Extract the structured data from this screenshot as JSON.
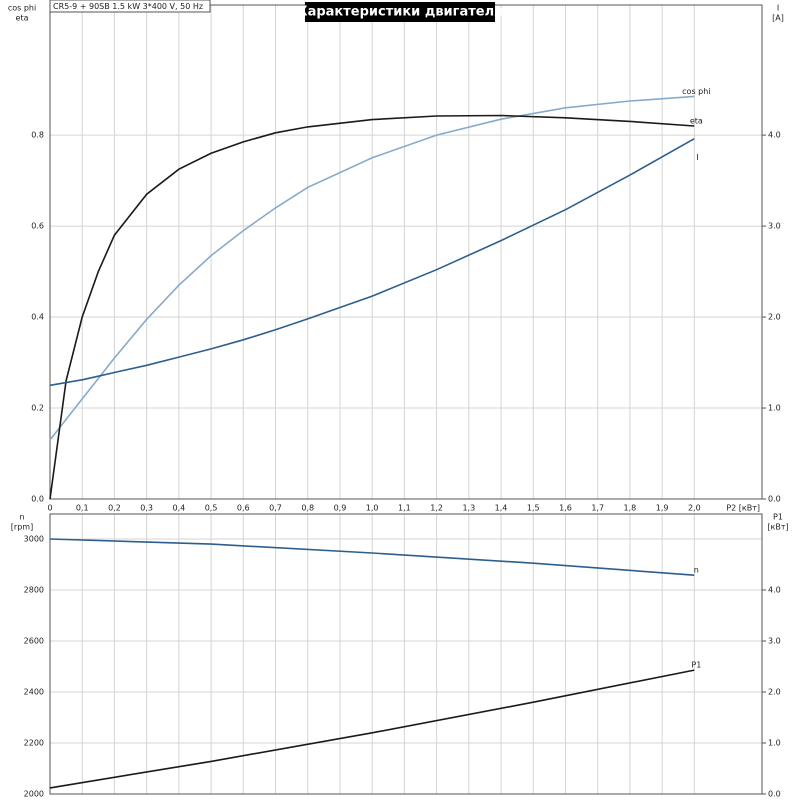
{
  "chart_data": [
    {
      "type": "line",
      "title": "Характеристики двигателя",
      "subtitle": "CR5-9 + 90SB   1.5 kW   3*400 V, 50 Hz",
      "xlabel": "P2 [кВт]",
      "ylabel": [
        "cos phi",
        "eta"
      ],
      "y2label": [
        "I",
        "[A]"
      ],
      "x": [
        0,
        0.05,
        0.1,
        0.15,
        0.2,
        0.3,
        0.4,
        0.5,
        0.6,
        0.7,
        0.8,
        1.0,
        1.2,
        1.4,
        1.6,
        1.8,
        2.0
      ],
      "xlim": [
        0,
        2.21
      ],
      "xticks": [
        0,
        {
          "value": 0.1,
          "label": "0,1"
        },
        {
          "value": 0.2,
          "label": "0,2"
        },
        {
          "value": 0.3,
          "label": "0,3"
        },
        {
          "value": 0.4,
          "label": "0,4"
        },
        {
          "value": 0.5,
          "label": "0,5"
        },
        {
          "value": 0.6,
          "label": "0,6"
        },
        {
          "value": 0.7,
          "label": "0,7"
        },
        {
          "value": 0.8,
          "label": "0,8"
        },
        {
          "value": 0.9,
          "label": "0,9"
        },
        {
          "value": 1.0,
          "label": "1,0"
        },
        {
          "value": 1.1,
          "label": "1,1"
        },
        {
          "value": 1.2,
          "label": "1,2"
        },
        {
          "value": 1.3,
          "label": "1,3"
        },
        {
          "value": 1.4,
          "label": "1,4"
        },
        {
          "value": 1.5,
          "label": "1,5"
        },
        {
          "value": 1.6,
          "label": "1,6"
        },
        {
          "value": 1.7,
          "label": "1,7"
        },
        {
          "value": 1.8,
          "label": "1,8"
        },
        {
          "value": 1.9,
          "label": "1,9"
        },
        {
          "value": 2.0,
          "label": "2,0"
        }
      ],
      "ylim": [
        0,
        1.086
      ],
      "yticks": [
        {
          "value": 0,
          "label": "0.0"
        },
        0.2,
        0.4,
        0.6,
        0.8
      ],
      "y2lim": [
        0,
        5.43
      ],
      "y2ticks": [
        {
          "value": 0,
          "label": "0.0"
        },
        {
          "value": 1,
          "label": "1.0"
        },
        {
          "value": 2,
          "label": "2.0"
        },
        {
          "value": 3,
          "label": "3.0"
        },
        {
          "value": 4,
          "label": "4.0"
        }
      ],
      "grid": true,
      "series": [
        {
          "name": "cos phi",
          "color": "#86aacb",
          "values": [
            0.13,
            0.175,
            0.22,
            0.265,
            0.31,
            0.395,
            0.47,
            0.535,
            0.59,
            0.64,
            0.685,
            0.75,
            0.8,
            0.835,
            0.86,
            0.875,
            0.885
          ]
        },
        {
          "name": "eta",
          "color": "#1a1a1a",
          "values": [
            0,
            0.26,
            0.4,
            0.5,
            0.58,
            0.67,
            0.725,
            0.76,
            0.785,
            0.805,
            0.818,
            0.834,
            0.842,
            0.843,
            0.838,
            0.83,
            0.82
          ]
        },
        {
          "name": "I",
          "color": "#2e5e8e",
          "axis": "y2",
          "values": [
            1.25,
            1.28,
            1.31,
            1.35,
            1.39,
            1.47,
            1.56,
            1.65,
            1.75,
            1.86,
            1.98,
            2.23,
            2.52,
            2.84,
            3.18,
            3.56,
            3.96
          ]
        }
      ]
    },
    {
      "type": "line",
      "ylabel": [
        "n",
        "[rpm]"
      ],
      "y2label": [
        "P1",
        "[кВт]"
      ],
      "x": [
        0,
        0.5,
        1.0,
        1.5,
        2.0
      ],
      "xlim": [
        0,
        2.21
      ],
      "xticks": [
        0,
        0.1,
        0.2,
        0.3,
        0.4,
        0.5,
        0.6,
        0.7,
        0.8,
        0.9,
        1.0,
        1.1,
        1.2,
        1.3,
        1.4,
        1.5,
        1.6,
        1.7,
        1.8,
        1.9,
        2.0
      ],
      "ylim": [
        2000,
        3098
      ],
      "yticks": [
        2000,
        2200,
        2400,
        2600,
        2800,
        3000
      ],
      "y2lim": [
        0,
        5.49
      ],
      "y2ticks": [
        {
          "value": 0,
          "label": "0.0"
        },
        {
          "value": 1,
          "label": "1.0"
        },
        {
          "value": 2,
          "label": "2.0"
        },
        {
          "value": 3,
          "label": "3.0"
        },
        {
          "value": 4,
          "label": "4.0"
        }
      ],
      "grid": true,
      "series": [
        {
          "name": "n",
          "color": "#2e5e8e",
          "values": [
            3000,
            2980,
            2945,
            2905,
            2858
          ]
        },
        {
          "name": "P1",
          "color": "#1a1a1a",
          "axis": "y2",
          "values": [
            0.12,
            0.64,
            1.2,
            1.8,
            2.43
          ]
        }
      ]
    }
  ]
}
